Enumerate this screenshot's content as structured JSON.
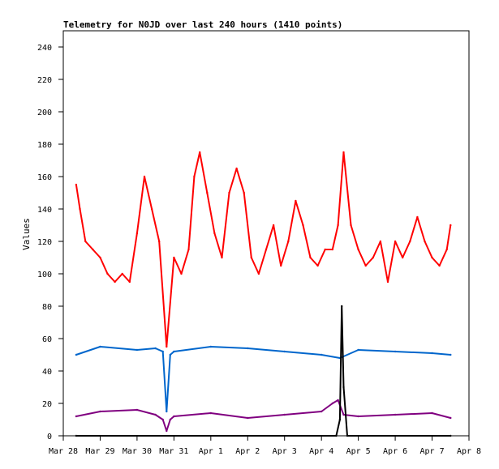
{
  "chart_data": {
    "type": "line",
    "title": "Telemetry for N0JD over last 240 hours (1410 points)",
    "xlabel": "",
    "ylabel": "Values",
    "x_tick_labels": [
      "Mar 28",
      "Mar 29",
      "Mar 30",
      "Mar 31",
      "Apr 1",
      "Apr 2",
      "Apr 3",
      "Apr 4",
      "Apr 5",
      "Apr 6",
      "Apr 7",
      "Apr 8"
    ],
    "xlim": [
      0,
      11
    ],
    "ylim": [
      0,
      250
    ],
    "y_ticks": [
      0,
      20,
      40,
      60,
      80,
      100,
      120,
      140,
      160,
      180,
      200,
      220,
      240
    ],
    "grid": false,
    "x_units_note": "days since Mar 28 00:00",
    "series": [
      {
        "color": "#ff0000",
        "x": [
          0.35,
          0.45,
          0.6,
          0.8,
          1.0,
          1.2,
          1.4,
          1.6,
          1.8,
          2.0,
          2.2,
          2.4,
          2.6,
          2.8,
          3.0,
          3.2,
          3.4,
          3.55,
          3.7,
          3.9,
          4.1,
          4.3,
          4.5,
          4.7,
          4.9,
          5.1,
          5.3,
          5.5,
          5.7,
          5.9,
          6.1,
          6.3,
          6.5,
          6.7,
          6.9,
          7.1,
          7.3,
          7.45,
          7.6,
          7.8,
          8.0,
          8.2,
          8.4,
          8.6,
          8.8,
          9.0,
          9.2,
          9.4,
          9.6,
          9.8,
          10.0,
          10.2,
          10.4,
          10.5
        ],
        "values": [
          155,
          140,
          120,
          115,
          110,
          100,
          95,
          100,
          95,
          125,
          160,
          140,
          120,
          55,
          110,
          100,
          115,
          160,
          175,
          150,
          125,
          110,
          150,
          165,
          150,
          110,
          100,
          115,
          130,
          105,
          120,
          145,
          130,
          110,
          105,
          115,
          115,
          130,
          175,
          130,
          115,
          105,
          110,
          120,
          95,
          120,
          110,
          120,
          135,
          120,
          110,
          105,
          115,
          130
        ]
      },
      {
        "color": "#0066cc",
        "x": [
          0.35,
          1.0,
          2.0,
          2.5,
          2.7,
          2.8,
          2.9,
          3.0,
          4.0,
          5.0,
          6.0,
          7.0,
          7.5,
          8.0,
          9.0,
          10.0,
          10.5
        ],
        "values": [
          50,
          55,
          53,
          54,
          52,
          15,
          50,
          52,
          55,
          54,
          52,
          50,
          48,
          53,
          52,
          51,
          50
        ]
      },
      {
        "color": "#800080",
        "x": [
          0.35,
          1.0,
          2.0,
          2.5,
          2.7,
          2.8,
          2.9,
          3.0,
          4.0,
          5.0,
          6.0,
          7.0,
          7.3,
          7.45,
          7.6,
          8.0,
          9.0,
          10.0,
          10.5
        ],
        "values": [
          12,
          15,
          16,
          13,
          10,
          3,
          10,
          12,
          14,
          11,
          13,
          15,
          20,
          22,
          13,
          12,
          13,
          14,
          11
        ]
      },
      {
        "color": "#000000",
        "x": [
          0.35,
          7.4,
          7.5,
          7.55,
          7.6,
          7.7,
          10.5
        ],
        "values": [
          0,
          0,
          10,
          80,
          30,
          0,
          0
        ]
      }
    ]
  }
}
